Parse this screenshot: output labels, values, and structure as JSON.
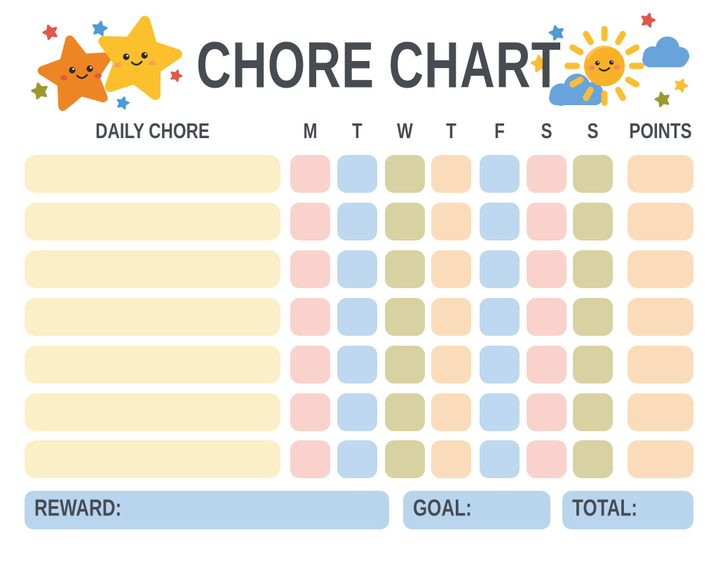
{
  "title": "CHORE CHART",
  "table": {
    "chore_column_header": "DAILY CHORE",
    "day_headers": [
      "M",
      "T",
      "W",
      "T",
      "F",
      "S",
      "S"
    ],
    "points_column_header": "POINTS",
    "row_count": 7,
    "row_cell_colors": [
      "pink",
      "blue",
      "olive",
      "peach",
      "blue",
      "pink",
      "olive"
    ],
    "points_cell_color": "peach",
    "chore_cell_color": "cream"
  },
  "footer": {
    "reward_label": "REWARD:",
    "goal_label": "GOAL:",
    "total_label": "TOTAL:"
  },
  "decorations": {
    "left": "two-smiling-stars-with-sparkles",
    "right": "smiling-sun-with-clouds-and-sparkles"
  },
  "colors": {
    "text": "#474B52",
    "cream": "#FBEFC7",
    "pink": "#F9D2CC",
    "blue": "#BED8F0",
    "olive": "#D8D2A2",
    "peach": "#FBDCBA",
    "footer_blue": "#B9D5EE",
    "star_orange": "#EE8524",
    "star_yellow": "#FBC02C",
    "sun_yellow": "#F9B127",
    "ray_yellow": "#FBBE33",
    "cloud_blue": "#68A4DB",
    "accent_red": "#E0584A",
    "accent_blue": "#4C9AD8",
    "accent_olive": "#9C982F",
    "face_dark": "#2E2A26",
    "cheek_orange_star": "#E2553B",
    "cheek_yellow_star": "#F59B5E",
    "cheek_sun": "#F2836B"
  }
}
